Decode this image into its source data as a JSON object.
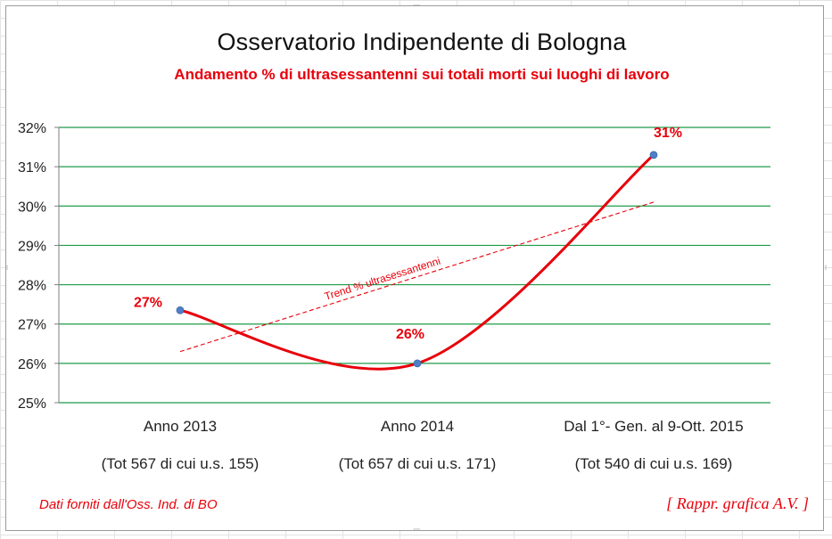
{
  "chart_data": {
    "type": "line",
    "title": "Osservatorio Indipendente di Bologna",
    "subtitle": "Andamento % di ultrasessantenni sui totali morti sui luoghi di lavoro",
    "categories": [
      "Anno 2013",
      "Anno 2014",
      "Dal 1°- Gen. al 9-Ott. 2015"
    ],
    "category_details": [
      "(Tot 567 di cui u.s. 155)",
      "(Tot 657 di cui u.s. 171)",
      "(Tot 540 di cui u.s. 169)"
    ],
    "series": [
      {
        "name": "% ultrasessantenni",
        "values": [
          27.35,
          26.0,
          31.3
        ],
        "data_labels": [
          "27%",
          "26%",
          "31%"
        ],
        "color": "#e8000b",
        "marker_color": "#4f7fc4",
        "smooth": true
      }
    ],
    "trendline": {
      "label": "Trend % ultrasessantenni",
      "start": 26.3,
      "end": 30.1,
      "color": "#e8000b",
      "style": "dashed"
    },
    "ylim": [
      25,
      32
    ],
    "y_ticks": [
      25,
      26,
      27,
      28,
      29,
      30,
      31,
      32
    ],
    "y_tick_labels": [
      "25%",
      "26%",
      "27%",
      "28%",
      "29%",
      "30%",
      "31%",
      "32%"
    ],
    "grid": true,
    "grid_color": "#1f9b4a",
    "xlabel": "",
    "ylabel": ""
  },
  "footer": {
    "source_note": "Dati  forniti dall'Oss. Ind. di BO",
    "credit": "[ Rappr. grafica  A.V. ]"
  }
}
